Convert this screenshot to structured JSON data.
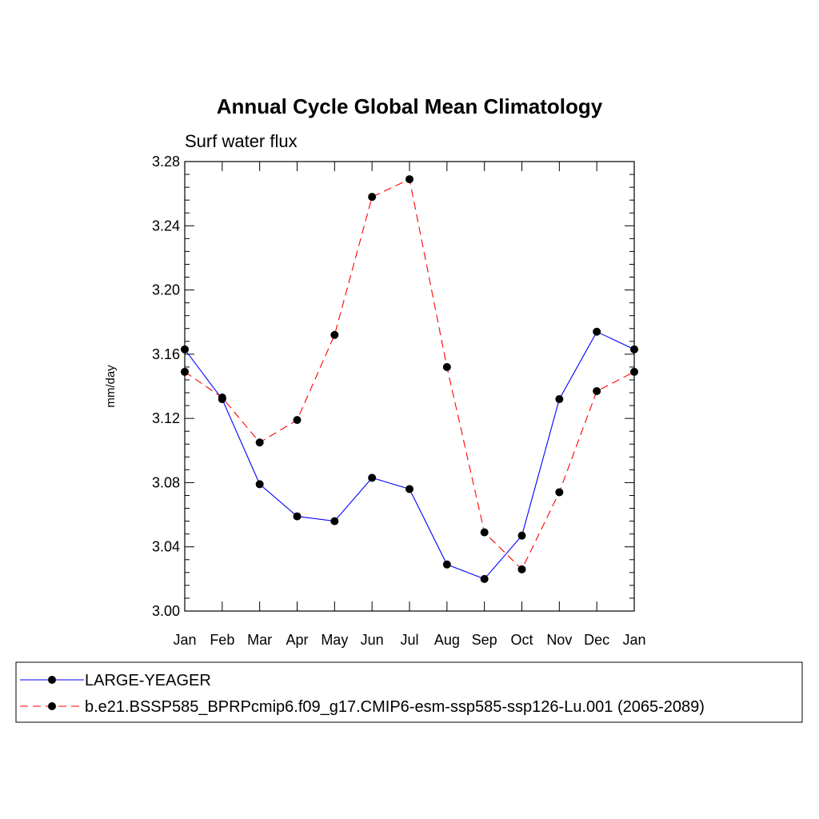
{
  "chart_data": {
    "type": "line",
    "title": "Annual Cycle Global Mean Climatology",
    "subtitle": "Surf water flux",
    "ylabel": "mm/day",
    "xlabel": "",
    "categories": [
      "Jan",
      "Feb",
      "Mar",
      "Apr",
      "May",
      "Jun",
      "Jul",
      "Aug",
      "Sep",
      "Oct",
      "Nov",
      "Dec",
      "Jan"
    ],
    "ylim": [
      3.0,
      3.28
    ],
    "yticks": [
      "3.00",
      "3.04",
      "3.08",
      "3.12",
      "3.16",
      "3.20",
      "3.24",
      "3.28"
    ],
    "series": [
      {
        "name": "LARGE-YEAGER",
        "color": "#0000ff",
        "dash": "solid",
        "values": [
          3.163,
          3.132,
          3.079,
          3.059,
          3.056,
          3.083,
          3.076,
          3.029,
          3.02,
          3.047,
          3.132,
          3.174,
          3.163
        ]
      },
      {
        "name": "b.e21.BSSP585_BPRPcmip6.f09_g17.CMIP6-esm-ssp585-ssp126-Lu.001 (2065-2089)",
        "color": "#ff0000",
        "dash": "dashed",
        "values": [
          3.149,
          3.133,
          3.105,
          3.119,
          3.172,
          3.258,
          3.269,
          3.152,
          3.049,
          3.026,
          3.074,
          3.137,
          3.149
        ]
      }
    ],
    "legend_position": "bottom"
  }
}
